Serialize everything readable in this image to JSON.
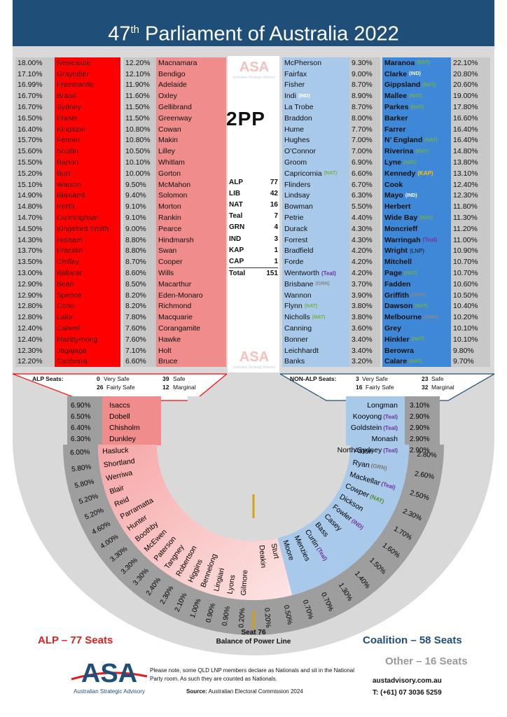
{
  "title": {
    "pre": "47",
    "sup": "th",
    "post": " Parliament of Australia 2022"
  },
  "colors": {
    "alp_dark": "#ff0000",
    "alp_light": "#f08c8c",
    "alp_pale": "#fbd3d3",
    "coal_dark": "#3f88d8",
    "coal_light": "#a9c9ea",
    "header": "#1f4e79",
    "gray": "#d9d9d9",
    "gray_dark": "#b0b0b0",
    "gold": "#d4a017"
  },
  "center": {
    "label": "2PP",
    "tally": [
      {
        "party": "ALP",
        "seats": "77"
      },
      {
        "party": "LIB",
        "seats": "42"
      },
      {
        "party": "NAT",
        "seats": "16"
      },
      {
        "party": "Teal",
        "seats": "7"
      },
      {
        "party": "GRN",
        "seats": "4"
      },
      {
        "party": "IND",
        "seats": "3"
      },
      {
        "party": "KAP",
        "seats": "1"
      },
      {
        "party": "CAP",
        "seats": "1"
      }
    ],
    "total_label": "Total",
    "total_value": "151"
  },
  "alp_col1": [
    {
      "pct": "18.00%",
      "seat": "Newcastle"
    },
    {
      "pct": "17.10%",
      "seat": "Grayndler"
    },
    {
      "pct": "16.99%",
      "seat": "Freemantle"
    },
    {
      "pct": "16.70%",
      "seat": "Brand"
    },
    {
      "pct": "16.70%",
      "seat": "Sydney"
    },
    {
      "pct": "16.50%",
      "seat": "Fraser"
    },
    {
      "pct": "16.40%",
      "seat": "Kingston"
    },
    {
      "pct": "15.70%",
      "seat": "Fenner"
    },
    {
      "pct": "15.60%",
      "seat": "Scullin"
    },
    {
      "pct": "15.50%",
      "seat": "Barton"
    },
    {
      "pct": "15.20%",
      "seat": "Burt"
    },
    {
      "pct": "15.10%",
      "seat": "Watson"
    },
    {
      "pct": "14.90%",
      "seat": "Blaxland"
    },
    {
      "pct": "14.80%",
      "seat": "Perth"
    },
    {
      "pct": "14.70%",
      "seat": "Cunningham"
    },
    {
      "pct": "14.50%",
      "seat": "Kingsford Smith"
    },
    {
      "pct": "14.30%",
      "seat": "Hotham"
    },
    {
      "pct": "13.70%",
      "seat": "Franklin"
    },
    {
      "pct": "13.50%",
      "seat": "Chifley"
    },
    {
      "pct": "13.00%",
      "seat": "Ballarat"
    },
    {
      "pct": "12.90%",
      "seat": "Bean"
    },
    {
      "pct": "12.90%",
      "seat": "Spence"
    },
    {
      "pct": "12.80%",
      "seat": "Corio"
    },
    {
      "pct": "12.80%",
      "seat": "Lalor"
    },
    {
      "pct": "12.40%",
      "seat": "Calwell"
    },
    {
      "pct": "12.40%",
      "seat": "Maribyrnong"
    },
    {
      "pct": "12.30%",
      "seat": "Jagajaga"
    },
    {
      "pct": "12.20%",
      "seat": "Canberra"
    }
  ],
  "alp_col2": [
    {
      "pct": "12.20%",
      "seat": "Macnamara"
    },
    {
      "pct": "12.10%",
      "seat": "Bendigo"
    },
    {
      "pct": "11.90%",
      "seat": "Adelaide"
    },
    {
      "pct": "11.60%",
      "seat": "Oxley"
    },
    {
      "pct": "11.50%",
      "seat": "Gellibrand"
    },
    {
      "pct": "11.50%",
      "seat": "Greenway"
    },
    {
      "pct": "10.80%",
      "seat": "Cowan"
    },
    {
      "pct": "10.80%",
      "seat": "Makin"
    },
    {
      "pct": "10.50%",
      "seat": "Lilley"
    },
    {
      "pct": "10.10%",
      "seat": "Whitlam"
    },
    {
      "pct": "10.00%",
      "seat": "Gorton"
    },
    {
      "pct": "9.50%",
      "seat": "McMahon"
    },
    {
      "pct": "9.40%",
      "seat": "Solomon"
    },
    {
      "pct": "9.10%",
      "seat": "Morton"
    },
    {
      "pct": "9.10%",
      "seat": "Rankin"
    },
    {
      "pct": "9.00%",
      "seat": "Pearce"
    },
    {
      "pct": "8.80%",
      "seat": "Hindmarsh"
    },
    {
      "pct": "8.80%",
      "seat": "Swan"
    },
    {
      "pct": "8.70%",
      "seat": "Cooper"
    },
    {
      "pct": "8.60%",
      "seat": "Wills"
    },
    {
      "pct": "8.50%",
      "seat": "Macarthur"
    },
    {
      "pct": "8.20%",
      "seat": "Eden-Monaro"
    },
    {
      "pct": "8.20%",
      "seat": "Richmond"
    },
    {
      "pct": "7.80%",
      "seat": "Macquarie"
    },
    {
      "pct": "7.60%",
      "seat": "Corangamite"
    },
    {
      "pct": "7.60%",
      "seat": "Hawke"
    },
    {
      "pct": "7.10%",
      "seat": "Holt"
    },
    {
      "pct": "6.60%",
      "seat": "Bruce"
    }
  ],
  "coal_col1": [
    {
      "seat": "McPherson",
      "pct": "9.30%"
    },
    {
      "seat": "Fairfax",
      "pct": "9.00%"
    },
    {
      "seat": "Fisher",
      "pct": "8.70%"
    },
    {
      "seat": "Indi",
      "tag": "(IND)",
      "tagc": "ind",
      "pct": "8.90%"
    },
    {
      "seat": "La Trobe",
      "pct": "8.70%"
    },
    {
      "seat": "Braddon",
      "pct": "8.00%"
    },
    {
      "seat": "Hume",
      "pct": "7.70%"
    },
    {
      "seat": "Hughes",
      "pct": "7.00%"
    },
    {
      "seat": "O’Connor",
      "pct": "7.00%"
    },
    {
      "seat": "Groom",
      "pct": "6.90%"
    },
    {
      "seat": "Capricornia",
      "tag": "(NAT)",
      "tagc": "nat",
      "pct": "6.60%"
    },
    {
      "seat": "Flinders",
      "pct": "6.70%"
    },
    {
      "seat": "Lindsay",
      "pct": "6.30%"
    },
    {
      "seat": "Bowman",
      "pct": "5.50%"
    },
    {
      "seat": "Petrie",
      "pct": "4.40%"
    },
    {
      "seat": "Durack",
      "pct": "4.30%"
    },
    {
      "seat": "Forrest",
      "pct": "4.30%"
    },
    {
      "seat": "Bradfield",
      "pct": "4.20%"
    },
    {
      "seat": "Forde",
      "pct": "4.20%"
    },
    {
      "seat": "Wentworth",
      "tag": "(Teal)",
      "tagc": "teal",
      "pct": "4.20%"
    },
    {
      "seat": "Brisbane",
      "tag": "(GRN)",
      "tagc": "grn",
      "pct": "3.70%"
    },
    {
      "seat": "Wannon",
      "pct": "3.90%"
    },
    {
      "seat": "Flynn",
      "tag": "(NAT)",
      "tagc": "nat",
      "pct": "3.80%"
    },
    {
      "seat": "Nicholls",
      "tag": "(NAT)",
      "tagc": "nat",
      "pct": "3.80%"
    },
    {
      "seat": "Canning",
      "pct": "3.60%"
    },
    {
      "seat": "Bonner",
      "pct": "3.40%"
    },
    {
      "seat": "Leichhardt",
      "pct": "3.40%"
    },
    {
      "seat": "Banks",
      "pct": "3.20%"
    }
  ],
  "coal_col2": [
    {
      "seat": "Maranoa",
      "tag": "(NAT)",
      "tagc": "nat",
      "pct": "22.10%"
    },
    {
      "seat": "Clarke",
      "tag": "(IND)",
      "tagc": "ind",
      "pct": "20.80%"
    },
    {
      "seat": "Gippsland",
      "tag": "(NAT)",
      "tagc": "nat",
      "pct": "20.60%"
    },
    {
      "seat": "Mallee",
      "tag": "(NAT)",
      "tagc": "nat",
      "pct": "19.00%"
    },
    {
      "seat": "Parkes",
      "tag": "(NAT)",
      "tagc": "nat",
      "pct": "17.80%"
    },
    {
      "seat": "Barker",
      "pct": "16.60%"
    },
    {
      "seat": "Farrer",
      "pct": "16.40%"
    },
    {
      "seat": "N’ England",
      "tag": "(NAT)",
      "tagc": "nat",
      "pct": "16.40%"
    },
    {
      "seat": "Riverina",
      "tag": "(NAT)",
      "tagc": "nat",
      "pct": "14.80%"
    },
    {
      "seat": "Lyne",
      "tag": "(NAT)",
      "tagc": "nat",
      "pct": "13.80%"
    },
    {
      "seat": "Kennedy",
      "tag": "(KAP)",
      "tagc": "kap",
      "pct": "13.10%"
    },
    {
      "seat": "Cook",
      "pct": "12.40%"
    },
    {
      "seat": "Mayo",
      "tag": "(IND)",
      "tagc": "ind",
      "pct": "12.30%"
    },
    {
      "seat": "Herbert",
      "pct": "11.80%"
    },
    {
      "seat": "Wide Bay",
      "tag": "(NAT)",
      "tagc": "nat",
      "pct": "11.30%"
    },
    {
      "seat": "Moncrieff",
      "pct": "11.20%"
    },
    {
      "seat": "Warringah",
      "tag": "(Teal)",
      "tagc": "teal",
      "pct": "11.00%"
    },
    {
      "seat": "Wright",
      "tag": "(LNP)",
      "tagc": "lnp",
      "pct": "10.90%"
    },
    {
      "seat": "Mitchell",
      "pct": "10.70%"
    },
    {
      "seat": "Page",
      "tag": "(NAT)",
      "tagc": "nat",
      "pct": "10.70%"
    },
    {
      "seat": "Fadden",
      "pct": "10.60%"
    },
    {
      "seat": "Griffith",
      "tag": "(GRN)",
      "tagc": "grn",
      "pct": "10.50%"
    },
    {
      "seat": "Dawson",
      "tag": "(NAT)",
      "tagc": "nat",
      "pct": "10.40%"
    },
    {
      "seat": "Melbourne",
      "tag": "(GRN)",
      "tagc": "grn",
      "pct": "10.20%"
    },
    {
      "seat": "Grey",
      "pct": "10.10%"
    },
    {
      "seat": "Hinkler",
      "tag": "(NAT)",
      "tagc": "nat",
      "pct": "10.10%"
    },
    {
      "seat": "Berowra",
      "pct": "9.80%"
    },
    {
      "seat": "Calare",
      "tag": "(NAT)",
      "tagc": "nat",
      "pct": "9.70%"
    }
  ],
  "alp_summary": {
    "label": "ALP Seats:",
    "very_safe": "0",
    "very_safe_l": "Very Safe",
    "safe": "39",
    "safe_l": "Safe",
    "fairly_safe": "26",
    "fairly_safe_l": "Fairly Safe",
    "marginal": "12",
    "marginal_l": "Marginal"
  },
  "coal_summary": {
    "label": "NON-ALP Seats:",
    "very_safe": "3",
    "very_safe_l": "Very Safe",
    "safe": "23",
    "safe_l": "Safe",
    "fairly_safe": "16",
    "fairly_safe_l": "Fairly Safe",
    "marginal": "32",
    "marginal_l": "Marginal"
  },
  "alp_arc_straight": [
    {
      "pct": "6.90%",
      "seat": "Isaccs"
    },
    {
      "pct": "6.50%",
      "seat": "Dobell"
    },
    {
      "pct": "6.40%",
      "seat": "Chisholm"
    },
    {
      "pct": "6.30%",
      "seat": "Dunkley"
    }
  ],
  "alp_arc": [
    {
      "pct": "6.00%",
      "seat": "Hasluck"
    },
    {
      "pct": "5.80%",
      "seat": "Shortland"
    },
    {
      "pct": "5.80%",
      "seat": "Werriwa"
    },
    {
      "pct": "5.20%",
      "seat": "Blair"
    },
    {
      "pct": "5.20%",
      "seat": "Reid"
    },
    {
      "pct": "4.60%",
      "seat": "Parramatta"
    },
    {
      "pct": "4.00%",
      "seat": "Hunter"
    },
    {
      "pct": "3.30%",
      "seat": "Boothby"
    },
    {
      "pct": "3.30%",
      "seat": "McEwen"
    },
    {
      "pct": "3.30%",
      "seat": "Paterson"
    },
    {
      "pct": "2.40%",
      "seat": "Tangney"
    },
    {
      "pct": "2.30%",
      "seat": "Robertson"
    },
    {
      "pct": "2.10%",
      "seat": "Higgins"
    },
    {
      "pct": "1.00%",
      "seat": "Bennelong"
    },
    {
      "pct": "0.90%",
      "seat": "Lingiari"
    },
    {
      "pct": "0.90%",
      "seat": "Lyons"
    },
    {
      "pct": "0.20%",
      "seat": "Gilmore"
    }
  ],
  "coal_arc_straight": [
    {
      "seat": "Longman",
      "pct": "3.10%"
    },
    {
      "seat": "Kooyong",
      "tag": "(Teal)",
      "tagc": "teal",
      "pct": "2.90%"
    },
    {
      "seat": "Goldstein",
      "tag": "(Teal)",
      "tagc": "teal",
      "pct": "2.90%"
    },
    {
      "seat": "Monash",
      "pct": "2.90%"
    },
    {
      "seat": "North Sydney",
      "tag": "(Teal)",
      "tagc": "teal",
      "pct": "2.90%"
    }
  ],
  "coal_arc": [
    {
      "seat": "Aston",
      "pct": "2.80%"
    },
    {
      "seat": "Ryan",
      "tag": "(GRN)",
      "tagc": "grn",
      "pct": "2.60%"
    },
    {
      "seat": "Mackellar",
      "tag": "(Teal)",
      "tagc": "teal",
      "pct": "2.50%"
    },
    {
      "seat": "Cowper",
      "tag": "(NAT)",
      "tagc": "nat",
      "pct": "2.30%"
    },
    {
      "seat": "Dickson",
      "pct": "1.70%"
    },
    {
      "seat": "Fowler",
      "tag": "(IND)",
      "tagc": "ind2",
      "pct": "1.60%"
    },
    {
      "seat": "Casey",
      "pct": "1.50%"
    },
    {
      "seat": "Bass",
      "pct": "1.40%"
    },
    {
      "seat": "Curtin",
      "tag": "(Teal)",
      "tagc": "teal",
      "pct": "1.30%"
    },
    {
      "seat": "Menzies",
      "pct": "0.70%"
    },
    {
      "seat": "Moore",
      "pct": "0.70%"
    },
    {
      "seat": "Sturt",
      "pct": "0.50%"
    },
    {
      "seat": "Deakin",
      "pct": "0.20%"
    }
  ],
  "seat76": {
    "line1": "Seat 76",
    "line2": "Balance of Power Line"
  },
  "footer": {
    "alp": "ALP – 77 Seats",
    "coalition": "Coalition   – 58 Seats",
    "other": "Other   – 16 Seats",
    "note": "Please note, some QLD LNP members declare as Nationals and sit in the National Party room. As such they are counted as Nationals.",
    "source_label": "Source:",
    "source_text": " Australian Electoral Commission 2024",
    "website": "austadvisory.com.au",
    "phone": "T: (+61) 07 3036 5259",
    "logo_letters": "ASA",
    "logo_name": "Australian Strategic Advisory"
  }
}
